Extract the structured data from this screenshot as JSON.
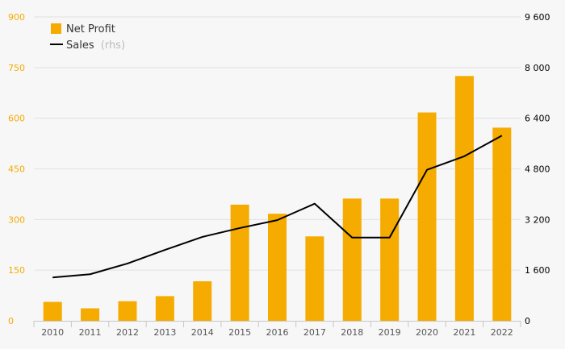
{
  "chart_data": {
    "type": "bar+line",
    "categories": [
      "2010",
      "2011",
      "2012",
      "2013",
      "2014",
      "2015",
      "2016",
      "2017",
      "2018",
      "2019",
      "2020",
      "2021",
      "2022"
    ],
    "series": [
      {
        "name": "Net Profit",
        "type": "bar",
        "axis": "left",
        "color": "#f5ab00",
        "values": [
          56,
          37,
          58,
          73,
          117,
          344,
          317,
          250,
          362,
          362,
          617,
          725,
          572
        ]
      },
      {
        "name": "Sales",
        "name_suffix": "(rhs)",
        "type": "line",
        "axis": "right",
        "color": "#000000",
        "values": [
          1370,
          1470,
          1810,
          2240,
          2650,
          2930,
          3180,
          3700,
          2630,
          2630,
          4770,
          5200,
          5850
        ]
      }
    ],
    "y_left": {
      "range": [
        0,
        900
      ],
      "ticks": [
        0,
        150,
        300,
        450,
        600,
        750,
        900
      ],
      "tick_labels": [
        "0",
        "150",
        "300",
        "450",
        "600",
        "750",
        "900"
      ],
      "color": "#f5ab00"
    },
    "y_right": {
      "range": [
        0,
        9600
      ],
      "ticks": [
        0,
        1600,
        3200,
        4800,
        6400,
        8000,
        9600
      ],
      "tick_labels": [
        "0",
        "1 600",
        "3 200",
        "4 800",
        "6 400",
        "8 000",
        "9 600"
      ],
      "color": "#000000"
    },
    "grid": true,
    "legend": "top-left",
    "title": "",
    "xlabel": "",
    "ylabel": ""
  }
}
